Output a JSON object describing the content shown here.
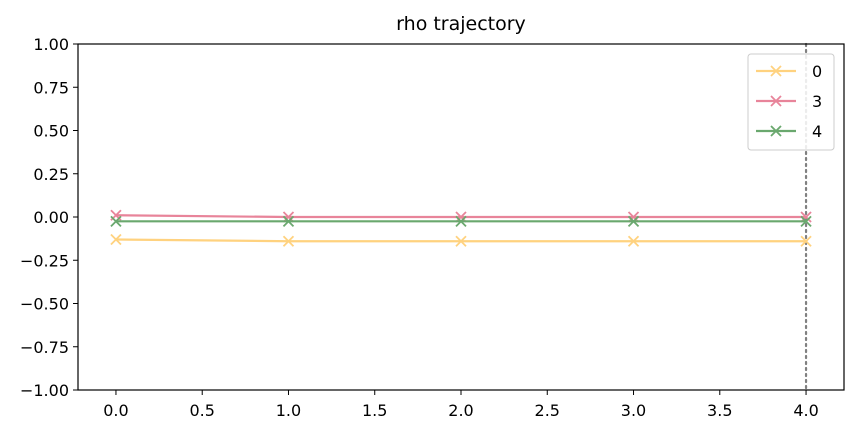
{
  "chart_data": {
    "type": "line",
    "title": "rho trajectory",
    "xlabel": "",
    "ylabel": "",
    "xlim": [
      -0.22,
      4.22
    ],
    "ylim": [
      -1.0,
      1.0
    ],
    "xticks": [
      "0.0",
      "0.5",
      "1.0",
      "1.5",
      "2.0",
      "2.5",
      "3.0",
      "3.5",
      "4.0"
    ],
    "yticks": [
      "1.00",
      "0.75",
      "0.50",
      "0.25",
      "0.00",
      "−0.25",
      "−0.50",
      "−0.75",
      "−1.00"
    ],
    "x": [
      0,
      1,
      2,
      3,
      4
    ],
    "series": [
      {
        "name": "0",
        "color": "#ffd27f",
        "values": [
          -0.13,
          -0.14,
          -0.14,
          -0.14,
          -0.14
        ]
      },
      {
        "name": "3",
        "color": "#e8849a",
        "values": [
          0.01,
          0.0,
          0.0,
          0.0,
          0.0
        ]
      },
      {
        "name": "4",
        "color": "#6aa86e",
        "values": [
          -0.025,
          -0.025,
          -0.025,
          -0.025,
          -0.025
        ]
      }
    ],
    "marker": "x",
    "vline": {
      "x": 4.0,
      "style": "dotted",
      "color": "#808080"
    },
    "legend": "top-right",
    "grid": false
  }
}
